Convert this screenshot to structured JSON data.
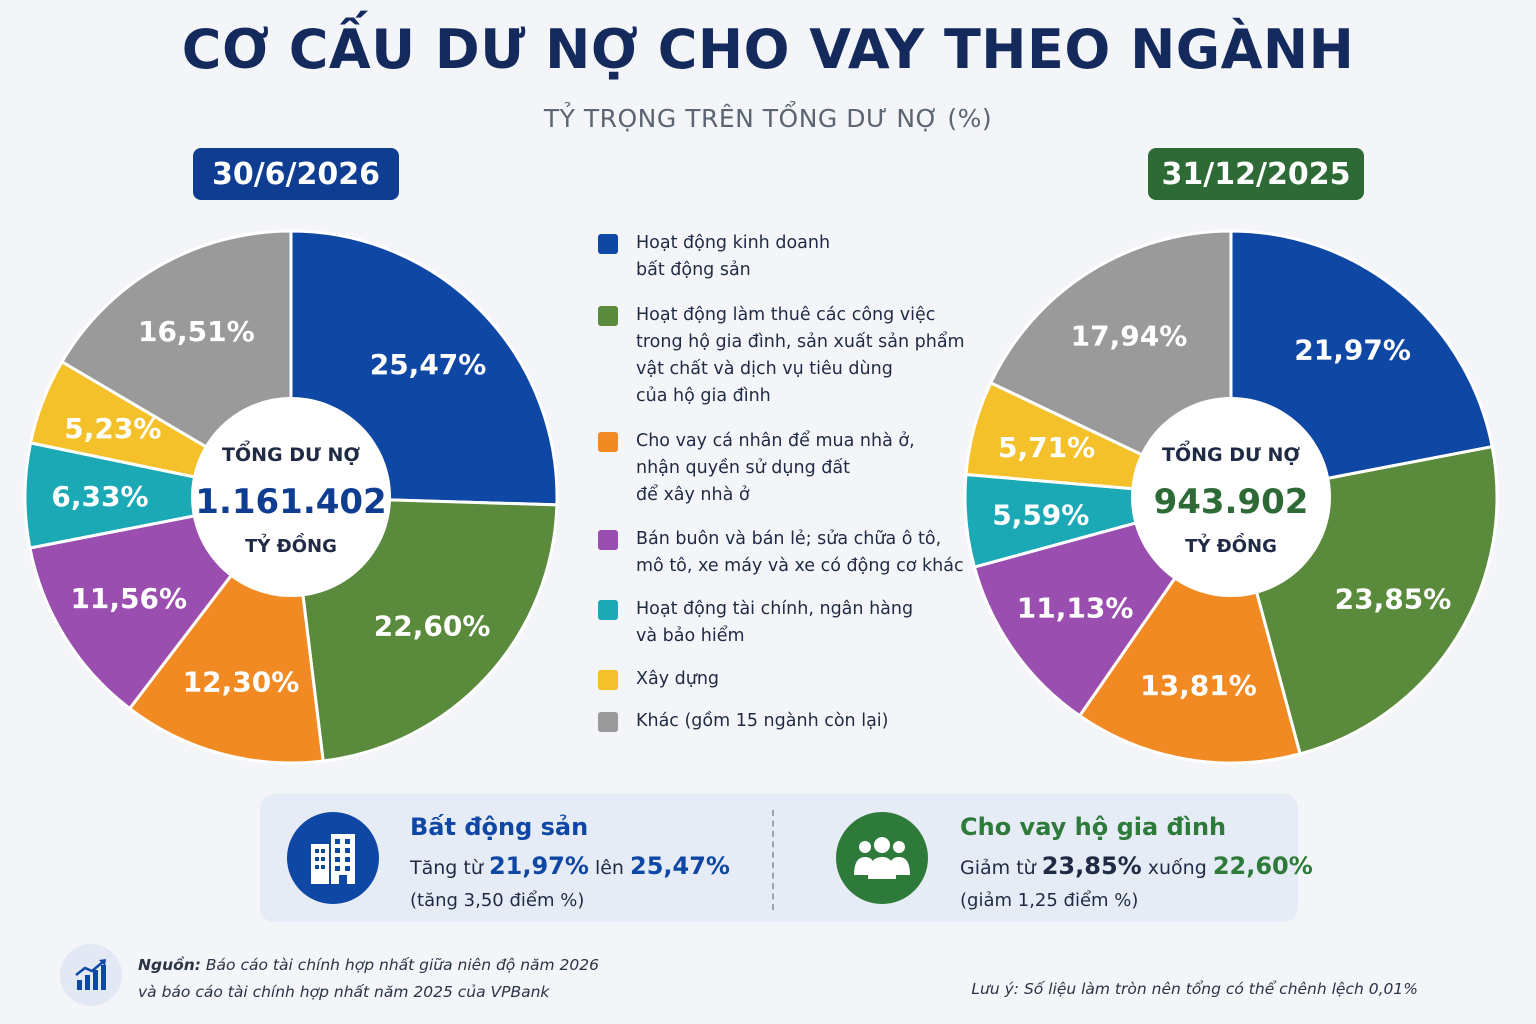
{
  "title": "CƠ CẤU DƯ NỢ CHO VAY THEO NGÀNH",
  "subtitle": "TỶ TRỌNG TRÊN TỔNG DƯ NỢ (%)",
  "legend": [
    {
      "label": "Hoạt động kinh doanh\nbất động sản",
      "color": "#0f47a5"
    },
    {
      "label": "Hoạt động làm thuê các công việc\ntrong hộ gia đình, sản xuất sản phẩm\nvật chất và dịch vụ tiêu dùng\ncủa hộ gia đình",
      "color": "#5a8a3c"
    },
    {
      "label": "Cho vay cá nhân để mua nhà ở,\nnhận quyền sử dụng đất\nđể xây nhà ở",
      "color": "#f28a24"
    },
    {
      "label": "Bán buôn và bán lẻ; sửa chữa ô tô,\nmô tô, xe máy và xe có động cơ khác",
      "color": "#9a4fb0"
    },
    {
      "label": "Hoạt động tài chính, ngân hàng\nvà bảo hiểm",
      "color": "#1aa9b5"
    },
    {
      "label": "Xây dựng",
      "color": "#f4c12a"
    },
    {
      "label": "Khác (gồm 15 ngành còn lại)",
      "color": "#9a9a9a"
    }
  ],
  "chart_data": [
    {
      "type": "pie",
      "date": "30/6/2026",
      "date_color": "#0e3d91",
      "center_title": "TỔNG DƯ NỢ",
      "center_value": "1.161.402",
      "center_value_color": "#0e3d91",
      "center_unit": "TỶ ĐỒNG",
      "categories": [
        "Hoạt động kinh doanh bất động sản",
        "Hoạt động làm thuê các công việc trong hộ gia đình, sản xuất sản phẩm vật chất và dịch vụ tiêu dùng của hộ gia đình",
        "Cho vay cá nhân để mua nhà ở, nhận quyền sử dụng đất để xây nhà ở",
        "Bán buôn và bán lẻ; sửa chữa ô tô, mô tô, xe máy và xe có động cơ khác",
        "Hoạt động tài chính, ngân hàng và bảo hiểm",
        "Xây dựng",
        "Khác (gồm 15 ngành còn lại)"
      ],
      "values": [
        25.47,
        22.6,
        12.3,
        11.56,
        6.33,
        5.23,
        16.51
      ],
      "labels": [
        "25,47%",
        "22,60%",
        "12,30%",
        "11,56%",
        "6,33%",
        "5,23%",
        "16,51%"
      ]
    },
    {
      "type": "pie",
      "date": "31/12/2025",
      "date_color": "#2d6a36",
      "center_title": "TỔNG DƯ NỢ",
      "center_value": "943.902",
      "center_value_color": "#2d6a36",
      "center_unit": "TỶ ĐỒNG",
      "categories": [
        "Hoạt động kinh doanh bất động sản",
        "Hoạt động làm thuê các công việc trong hộ gia đình, sản xuất sản phẩm vật chất và dịch vụ tiêu dùng của hộ gia đình",
        "Cho vay cá nhân để mua nhà ở, nhận quyền sử dụng đất để xây nhà ở",
        "Bán buôn và bán lẻ; sửa chữa ô tô, mô tô, xe máy và xe có động cơ khác",
        "Hoạt động tài chính, ngân hàng và bảo hiểm",
        "Xây dựng",
        "Khác (gồm 15 ngành còn lại)"
      ],
      "values": [
        21.97,
        23.85,
        13.81,
        11.13,
        5.59,
        5.71,
        17.94
      ],
      "labels": [
        "21,97%",
        "23,85%",
        "13,81%",
        "11,13%",
        "5,59%",
        "5,71%",
        "17,94%"
      ]
    }
  ],
  "highlights": {
    "real_estate": {
      "title": "Bất động sản",
      "title_color": "#0f47a5",
      "prefix": "Tăng từ",
      "from": "21,97%",
      "mid": "lên",
      "to": "25,47%",
      "note": "(tăng 3,50 điểm %)",
      "icon": "building-icon"
    },
    "household": {
      "title": "Cho vay hộ gia đình",
      "title_color": "#2d7a3a",
      "prefix": "Giảm từ",
      "from": "23,85%",
      "mid": "xuống",
      "to": "22,60%",
      "note": "(giảm 1,25 điểm %)",
      "icon": "people-icon"
    }
  },
  "source": {
    "label": "Nguồn:",
    "line1": "Báo cáo tài chính hợp nhất giữa niên độ năm 2026",
    "line2": "và báo cáo tài chính hợp nhất năm 2025 của VPBank",
    "icon": "chart-growth-icon"
  },
  "note": "Lưu ý: Số liệu làm tròn nên tổng có thể chênh lệch 0,01%"
}
